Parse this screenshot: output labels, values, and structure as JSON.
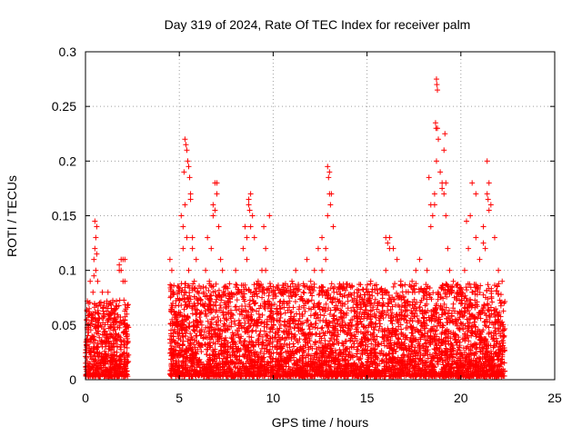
{
  "chart_data": {
    "type": "scatter",
    "title": "Day 319 of 2024, Rate Of TEC Index for receiver palm",
    "xlabel": "GPS time / hours",
    "ylabel": "ROTI / TECUs",
    "xlim": [
      0,
      25
    ],
    "ylim": [
      0,
      0.3
    ],
    "xticks": [
      0,
      5,
      10,
      15,
      20,
      25
    ],
    "xtick_labels": [
      "0",
      "5",
      "10",
      "15",
      "20",
      "25"
    ],
    "yticks": [
      0,
      0.05,
      0.1,
      0.15,
      0.2,
      0.25,
      0.3
    ],
    "ytick_labels": [
      "0",
      "0.05",
      "0.1",
      "0.15",
      "0.2",
      "0.25",
      "0.3"
    ],
    "grid": true,
    "marker": "+",
    "color": "#ff0000",
    "series": [
      {
        "name": "ROTI",
        "x": [
          0.05,
          0.1,
          0.15,
          0.2,
          0.25,
          0.3,
          0.35,
          0.4,
          0.45,
          0.5,
          0.55,
          0.6,
          0.65,
          0.7,
          0.8,
          0.9,
          1.0,
          1.1,
          1.2,
          1.3,
          1.4,
          1.5,
          1.6,
          1.7,
          1.8,
          1.9,
          2.0,
          2.1,
          2.2,
          0.5,
          0.55,
          0.45,
          0.6,
          0.9,
          1.0,
          1.1,
          1.8,
          1.9,
          2.0,
          2.1,
          1.3,
          0.3,
          0.7,
          1.5,
          1.6,
          4.5,
          4.6,
          4.7,
          4.8,
          4.9,
          5.0,
          5.1,
          5.2,
          5.3,
          5.4,
          5.5,
          5.6,
          5.7,
          5.8,
          5.9,
          6.0,
          6.1,
          6.2,
          6.3,
          6.4,
          6.5,
          6.6,
          6.7,
          6.8,
          6.9,
          7.0,
          7.1,
          7.2,
          7.3,
          5.3,
          5.35,
          5.4,
          5.45,
          5.5,
          5.55,
          5.25,
          5.6,
          5.2,
          5.7,
          6.9,
          7.0,
          6.8,
          5.9,
          6.0,
          4.8,
          7.5,
          7.8,
          8.0,
          8.2,
          8.4,
          8.5,
          8.6,
          8.7,
          8.8,
          8.9,
          9.0,
          9.2,
          9.4,
          9.6,
          9.8,
          10.0,
          8.7,
          8.75,
          8.8,
          8.6,
          9.5,
          9.6,
          10.2,
          10.4,
          10.6,
          10.8,
          11.0,
          11.2,
          11.4,
          11.6,
          11.8,
          12.0,
          12.2,
          12.4,
          12.6,
          12.8,
          12.9,
          13.0,
          13.1,
          13.2,
          13.4,
          13.6,
          13.8,
          14.0,
          12.9,
          12.95,
          13.0,
          13.05,
          12.8,
          12.6,
          14.2,
          14.4,
          14.6,
          14.8,
          15.0,
          15.2,
          15.4,
          15.6,
          15.8,
          16.0,
          16.2,
          16.4,
          16.6,
          16.8,
          17.0,
          17.2,
          17.4,
          17.6,
          17.8,
          16.0,
          16.1,
          16.2,
          15.0,
          15.4,
          18.0,
          18.2,
          18.4,
          18.5,
          18.6,
          18.7,
          18.75,
          18.8,
          18.9,
          19.0,
          19.1,
          19.2,
          19.3,
          19.4,
          19.6,
          19.8,
          20.0,
          18.7,
          18.72,
          18.75,
          18.65,
          18.68,
          19.1,
          19.15,
          19.2,
          18.3,
          18.4,
          18.6,
          19.0,
          20.0,
          20.2,
          20.4,
          20.5,
          20.6,
          20.8,
          21.0,
          21.2,
          21.3,
          21.4,
          21.5,
          21.6,
          21.8,
          22.0,
          22.2,
          22.3,
          20.3,
          20.8,
          21.4,
          21.45,
          21.5,
          21.2,
          20.6
        ],
        "y": [
          0.02,
          0.05,
          0.07,
          0.03,
          0.09,
          0.06,
          0.04,
          0.08,
          0.11,
          0.145,
          0.13,
          0.14,
          0.09,
          0.06,
          0.05,
          0.03,
          0.07,
          0.04,
          0.08,
          0.06,
          0.02,
          0.05,
          0.04,
          0.03,
          0.1,
          0.11,
          0.11,
          0.09,
          0.06,
          0.12,
          0.1,
          0.095,
          0.115,
          0.08,
          0.06,
          0.04,
          0.105,
          0.1,
          0.09,
          0.11,
          0.07,
          0.01,
          0.005,
          0.005,
          0.01,
          0.11,
          0.1,
          0.08,
          0.06,
          0.05,
          0.08,
          0.15,
          0.14,
          0.16,
          0.13,
          0.1,
          0.17,
          0.12,
          0.09,
          0.11,
          0.07,
          0.06,
          0.05,
          0.08,
          0.1,
          0.13,
          0.09,
          0.12,
          0.15,
          0.18,
          0.17,
          0.14,
          0.11,
          0.1,
          0.22,
          0.215,
          0.21,
          0.2,
          0.195,
          0.185,
          0.19,
          0.165,
          0.12,
          0.13,
          0.155,
          0.18,
          0.16,
          0.06,
          0.05,
          0.03,
          0.07,
          0.06,
          0.1,
          0.08,
          0.12,
          0.14,
          0.11,
          0.16,
          0.17,
          0.15,
          0.13,
          0.09,
          0.1,
          0.12,
          0.15,
          0.06,
          0.165,
          0.155,
          0.14,
          0.13,
          0.14,
          0.1,
          0.06,
          0.08,
          0.05,
          0.07,
          0.09,
          0.1,
          0.06,
          0.08,
          0.11,
          0.09,
          0.1,
          0.12,
          0.13,
          0.11,
          0.15,
          0.19,
          0.17,
          0.14,
          0.08,
          0.07,
          0.06,
          0.05,
          0.195,
          0.185,
          0.17,
          0.16,
          0.12,
          0.1,
          0.04,
          0.05,
          0.06,
          0.07,
          0.08,
          0.09,
          0.06,
          0.07,
          0.08,
          0.1,
          0.13,
          0.12,
          0.11,
          0.09,
          0.07,
          0.08,
          0.09,
          0.1,
          0.11,
          0.13,
          0.125,
          0.12,
          0.08,
          0.07,
          0.08,
          0.1,
          0.14,
          0.15,
          0.16,
          0.2,
          0.23,
          0.22,
          0.19,
          0.18,
          0.17,
          0.15,
          0.12,
          0.1,
          0.09,
          0.08,
          0.06,
          0.275,
          0.27,
          0.265,
          0.235,
          0.23,
          0.21,
          0.225,
          0.18,
          0.185,
          0.16,
          0.17,
          0.175,
          0.08,
          0.1,
          0.12,
          0.15,
          0.18,
          0.13,
          0.11,
          0.14,
          0.12,
          0.2,
          0.18,
          0.16,
          0.13,
          0.1,
          0.09,
          0.07,
          0.145,
          0.17,
          0.17,
          0.165,
          0.155,
          0.125,
          0.08
        ]
      }
    ]
  }
}
